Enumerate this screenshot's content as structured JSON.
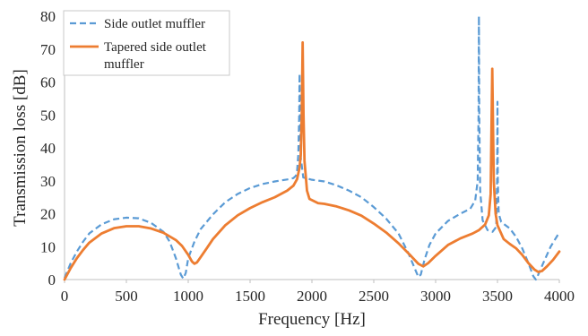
{
  "chart_data": {
    "type": "line",
    "xlabel": "Frequency [Hz]",
    "ylabel": "Transmission loss [dB]",
    "xlim": [
      0,
      4000
    ],
    "ylim": [
      0,
      80
    ],
    "x_ticks": [
      "0",
      "500",
      "1000",
      "1500",
      "2000",
      "2500",
      "3000",
      "3500",
      "4000"
    ],
    "y_ticks": [
      "0",
      "10",
      "20",
      "30",
      "40",
      "50",
      "60",
      "70",
      "80"
    ],
    "grid": "none",
    "legend_position": "top-left",
    "series": [
      {
        "name": "Side outlet muffler",
        "style": "dashed",
        "color": "#5B9BD5",
        "points": [
          [
            0,
            0.5
          ],
          [
            50,
            5
          ],
          [
            100,
            8.5
          ],
          [
            150,
            11.5
          ],
          [
            200,
            14
          ],
          [
            300,
            16.8
          ],
          [
            400,
            18.3
          ],
          [
            500,
            18.8
          ],
          [
            600,
            18.6
          ],
          [
            700,
            17.2
          ],
          [
            800,
            14.5
          ],
          [
            850,
            11.5
          ],
          [
            900,
            6.5
          ],
          [
            940,
            1.5
          ],
          [
            960,
            0.3
          ],
          [
            980,
            2
          ],
          [
            1000,
            6.5
          ],
          [
            1050,
            11.5
          ],
          [
            1100,
            15.3
          ],
          [
            1200,
            19.8
          ],
          [
            1300,
            23.5
          ],
          [
            1400,
            26
          ],
          [
            1500,
            27.8
          ],
          [
            1600,
            29
          ],
          [
            1700,
            29.8
          ],
          [
            1800,
            30.4
          ],
          [
            1850,
            30.8
          ],
          [
            1870,
            31.5
          ],
          [
            1880,
            33
          ],
          [
            1890,
            38
          ],
          [
            1897,
            50
          ],
          [
            1900,
            62.5
          ],
          [
            1903,
            50
          ],
          [
            1910,
            37
          ],
          [
            1930,
            31
          ],
          [
            2000,
            30.3
          ],
          [
            2100,
            29.8
          ],
          [
            2200,
            28.6
          ],
          [
            2300,
            27
          ],
          [
            2400,
            25
          ],
          [
            2500,
            22
          ],
          [
            2600,
            18.5
          ],
          [
            2700,
            14
          ],
          [
            2780,
            8
          ],
          [
            2830,
            3.5
          ],
          [
            2860,
            0.8
          ],
          [
            2880,
            1.5
          ],
          [
            2910,
            6
          ],
          [
            2950,
            10.5
          ],
          [
            3000,
            14
          ],
          [
            3100,
            17.8
          ],
          [
            3200,
            20
          ],
          [
            3280,
            21.5
          ],
          [
            3320,
            24
          ],
          [
            3340,
            30
          ],
          [
            3347,
            50
          ],
          [
            3350,
            80
          ],
          [
            3353,
            50
          ],
          [
            3360,
            27
          ],
          [
            3380,
            18
          ],
          [
            3420,
            15
          ],
          [
            3460,
            14.5
          ],
          [
            3490,
            16
          ],
          [
            3497,
            30
          ],
          [
            3500,
            54
          ],
          [
            3503,
            30
          ],
          [
            3510,
            20
          ],
          [
            3530,
            17.5
          ],
          [
            3600,
            15.5
          ],
          [
            3650,
            13
          ],
          [
            3700,
            9.5
          ],
          [
            3750,
            5
          ],
          [
            3790,
            1
          ],
          [
            3810,
            0
          ],
          [
            3830,
            1.5
          ],
          [
            3870,
            5
          ],
          [
            3930,
            10
          ],
          [
            4000,
            14.3
          ]
        ]
      },
      {
        "name": "Tapered side outlet muffler",
        "style": "solid",
        "color": "#ED7D31",
        "points": [
          [
            0,
            0
          ],
          [
            50,
            3.5
          ],
          [
            100,
            6.5
          ],
          [
            150,
            9
          ],
          [
            200,
            11.2
          ],
          [
            300,
            14
          ],
          [
            400,
            15.6
          ],
          [
            500,
            16.2
          ],
          [
            600,
            16.2
          ],
          [
            700,
            15.5
          ],
          [
            800,
            14.2
          ],
          [
            900,
            12
          ],
          [
            950,
            10.2
          ],
          [
            1000,
            7.5
          ],
          [
            1030,
            5.5
          ],
          [
            1050,
            4.8
          ],
          [
            1070,
            5.2
          ],
          [
            1100,
            6.8
          ],
          [
            1150,
            9.5
          ],
          [
            1200,
            12.3
          ],
          [
            1300,
            16.5
          ],
          [
            1400,
            19.5
          ],
          [
            1500,
            21.7
          ],
          [
            1600,
            23.5
          ],
          [
            1700,
            25
          ],
          [
            1800,
            27
          ],
          [
            1850,
            28.5
          ],
          [
            1880,
            30.5
          ],
          [
            1900,
            34
          ],
          [
            1910,
            38
          ],
          [
            1918,
            50
          ],
          [
            1925,
            72
          ],
          [
            1932,
            50
          ],
          [
            1940,
            36
          ],
          [
            1960,
            27
          ],
          [
            1980,
            24.5
          ],
          [
            2050,
            23.2
          ],
          [
            2100,
            23
          ],
          [
            2200,
            22.2
          ],
          [
            2300,
            21
          ],
          [
            2400,
            19.4
          ],
          [
            2500,
            17
          ],
          [
            2600,
            14.3
          ],
          [
            2700,
            11
          ],
          [
            2800,
            7.2
          ],
          [
            2860,
            4.8
          ],
          [
            2900,
            4
          ],
          [
            2940,
            5
          ],
          [
            3000,
            7.2
          ],
          [
            3100,
            10.5
          ],
          [
            3200,
            12.5
          ],
          [
            3300,
            14
          ],
          [
            3350,
            15
          ],
          [
            3400,
            16.7
          ],
          [
            3430,
            19.5
          ],
          [
            3445,
            26
          ],
          [
            3453,
            50
          ],
          [
            3458,
            64
          ],
          [
            3463,
            50
          ],
          [
            3470,
            30
          ],
          [
            3485,
            20
          ],
          [
            3500,
            16.5
          ],
          [
            3550,
            12.3
          ],
          [
            3600,
            10.8
          ],
          [
            3650,
            9.5
          ],
          [
            3700,
            7.5
          ],
          [
            3750,
            5
          ],
          [
            3800,
            3
          ],
          [
            3830,
            2.3
          ],
          [
            3860,
            2.6
          ],
          [
            3900,
            4
          ],
          [
            3950,
            6
          ],
          [
            4000,
            8.5
          ]
        ]
      }
    ]
  }
}
